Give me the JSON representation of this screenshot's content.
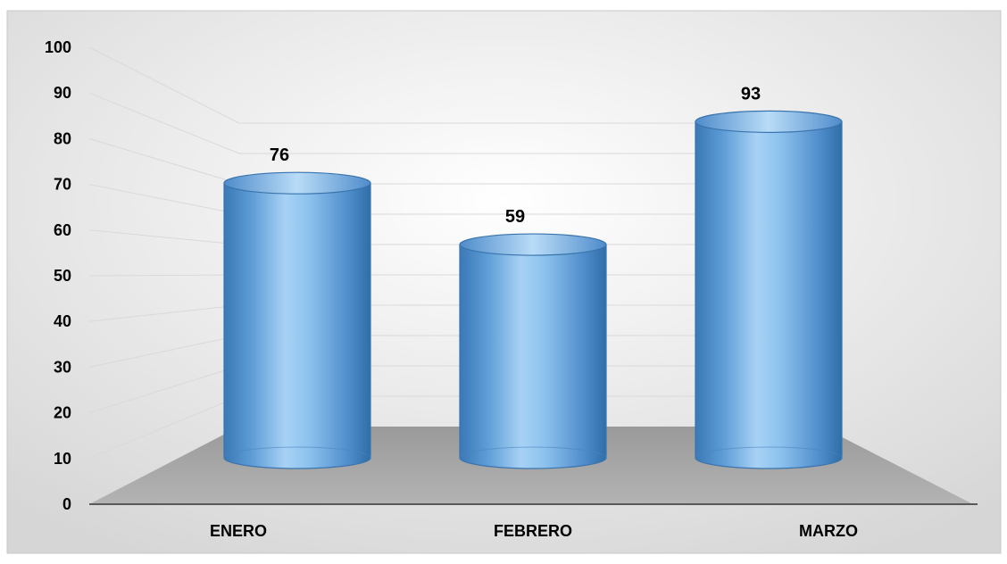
{
  "chart_data": {
    "type": "bar",
    "style": "3d-cylinder",
    "categories": [
      "ENERO",
      "FEBRERO",
      "MARZO"
    ],
    "values": [
      76,
      59,
      93
    ],
    "data_labels": [
      "76",
      "59",
      "93"
    ],
    "ylim": [
      0,
      100
    ],
    "yticks": [
      "0",
      "10",
      "20",
      "30",
      "40",
      "50",
      "60",
      "70",
      "80",
      "90",
      "100"
    ],
    "grid": true,
    "title": "",
    "xlabel": "",
    "ylabel": "",
    "colors": {
      "bar": "#5b9bd5",
      "bar_light": "#b9dcf7",
      "bar_dark": "#2f6ea8",
      "floor": "#a6a6a6",
      "grid": "#d9d9d9",
      "background_center": "#ffffff",
      "background_edge": "#d9d9d9"
    }
  }
}
